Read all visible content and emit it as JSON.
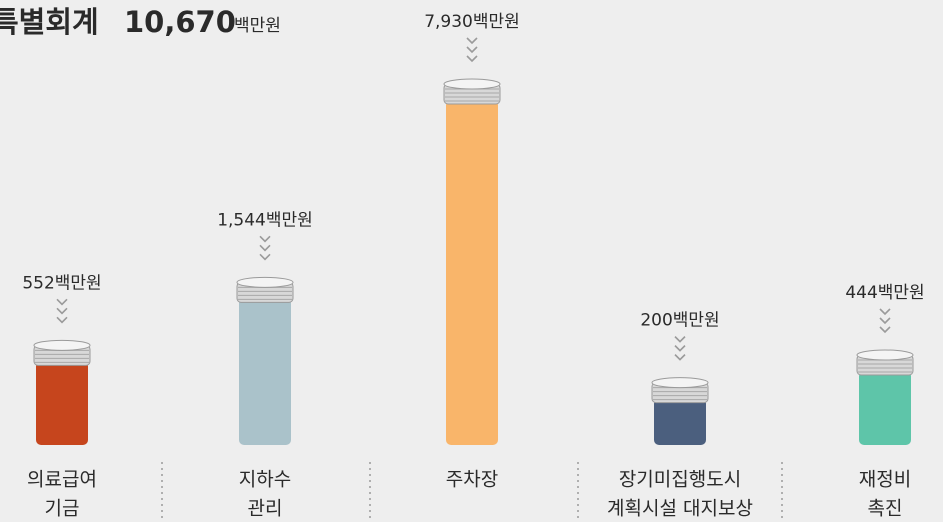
{
  "chart_data": {
    "type": "bar",
    "title": "특별회계",
    "total": "10,670",
    "unit": "백만원",
    "categories": [
      [
        "의료급여",
        "기금"
      ],
      [
        "지하수",
        "관리"
      ],
      [
        "주차장"
      ],
      [
        "장기미집행도시",
        "계획시설 대지보상"
      ],
      [
        "재정비",
        "촉진"
      ]
    ],
    "values": [
      552,
      1544,
      7930,
      200,
      444
    ],
    "value_labels": [
      "552백만원",
      "1,544백만원",
      "7,930백만원",
      "200백만원",
      "444백만원"
    ],
    "colors": [
      "#c6451d",
      "#aac2ca",
      "#f9b56a",
      "#4b5f7e",
      "#5ec5a9"
    ],
    "scale": "sqrt"
  }
}
